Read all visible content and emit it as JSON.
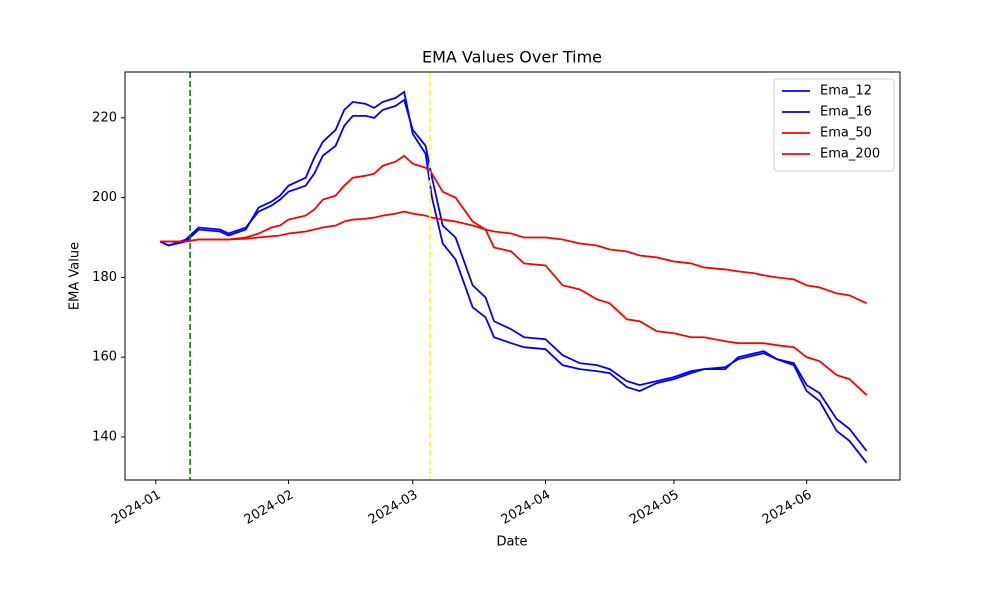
{
  "chart_data": {
    "type": "line",
    "title": "EMA Values Over Time",
    "x_label": "Date",
    "y_label": "EMA Value",
    "x": [
      1,
      3,
      7,
      10,
      15,
      17,
      21,
      24,
      27,
      29,
      31,
      35,
      37,
      39,
      42,
      44,
      46,
      49,
      51,
      53,
      56,
      58,
      60,
      63,
      64.5,
      67,
      70,
      74,
      77,
      79,
      83,
      86,
      91,
      95,
      99,
      103,
      106,
      110,
      113,
      117,
      121,
      125,
      128,
      133,
      136,
      140,
      142,
      145,
      149,
      152,
      155,
      159,
      162,
      166
    ],
    "series": [
      {
        "name": "Ema_12",
        "color": "#0000ff",
        "values": [
          189,
          188,
          189,
          192,
          191.5,
          190.5,
          192,
          197.5,
          199,
          200.5,
          203,
          205,
          210,
          214,
          217,
          222,
          224,
          223.5,
          222.5,
          224,
          225,
          226.5,
          216,
          211,
          200,
          188.5,
          184.5,
          172.5,
          170,
          165,
          163.5,
          162.5,
          162,
          158,
          157,
          156.5,
          156,
          152.5,
          151.5,
          153.5,
          154.5,
          156,
          157,
          157,
          160,
          161,
          161.5,
          159.5,
          158,
          151.5,
          149,
          141.5,
          139,
          133.5
        ]
      },
      {
        "name": "Ema_16",
        "color": "#0000ff",
        "values": [
          189,
          188,
          189.5,
          192.5,
          192,
          191,
          192.5,
          196.5,
          198,
          199.5,
          201.5,
          203,
          206,
          210.5,
          213,
          218,
          220.5,
          220.5,
          220,
          222,
          223,
          224.5,
          217,
          213,
          205,
          193,
          190,
          178,
          175,
          169,
          167,
          165,
          164.5,
          160.5,
          158.5,
          158,
          157,
          154,
          153,
          154,
          155,
          156.5,
          157,
          157.5,
          159.5,
          160.5,
          161,
          159.5,
          158.5,
          153,
          151,
          144.5,
          142,
          136.5
        ]
      },
      {
        "name": "Ema_50",
        "color": "#ff0000",
        "values": [
          189,
          189,
          189,
          189.5,
          189.5,
          189.5,
          190,
          191,
          192.5,
          193,
          194.5,
          195.5,
          197,
          199.5,
          200.5,
          203,
          205,
          205.5,
          206,
          208,
          209,
          210.5,
          208.5,
          207.5,
          206,
          201.5,
          200,
          194,
          192,
          187.5,
          186.5,
          183.5,
          183,
          178,
          177,
          174.5,
          173.5,
          169.5,
          169,
          166.5,
          166,
          165,
          165,
          164,
          163.5,
          163.5,
          163.5,
          163,
          162.5,
          160,
          159,
          155.5,
          154.5,
          150.5
        ]
      },
      {
        "name": "Ema_200",
        "color": "#ff0000",
        "values": [
          189,
          189,
          189,
          189.5,
          189.5,
          189.5,
          189.7,
          190,
          190.3,
          190.5,
          191,
          191.5,
          192,
          192.5,
          193,
          194,
          194.5,
          194.7,
          195,
          195.5,
          196,
          196.5,
          196,
          195.5,
          195,
          194.5,
          194,
          193,
          192,
          191.5,
          191,
          190,
          190,
          189.5,
          188.5,
          188,
          187,
          186.5,
          185.5,
          185,
          184,
          183.5,
          182.5,
          182,
          181.5,
          181,
          180.5,
          180,
          179.5,
          178,
          177.5,
          176,
          175.5,
          173.5
        ]
      }
    ],
    "vlines": [
      {
        "value": 8,
        "color": "#008000"
      },
      {
        "value": 64,
        "color": "#ffff00"
      }
    ],
    "xlim": [
      -7.2,
      173.8
    ],
    "xticks": [
      {
        "value": 0,
        "label": "2024-01"
      },
      {
        "value": 31,
        "label": "2024-02"
      },
      {
        "value": 60,
        "label": "2024-03"
      },
      {
        "value": 91,
        "label": "2024-04"
      },
      {
        "value": 121,
        "label": "2024-05"
      },
      {
        "value": 152,
        "label": "2024-06"
      }
    ],
    "ylim": [
      129.2,
      231.5
    ],
    "yticks": [
      140,
      160,
      180,
      200,
      220
    ],
    "grid": false,
    "legend": "upper right"
  }
}
